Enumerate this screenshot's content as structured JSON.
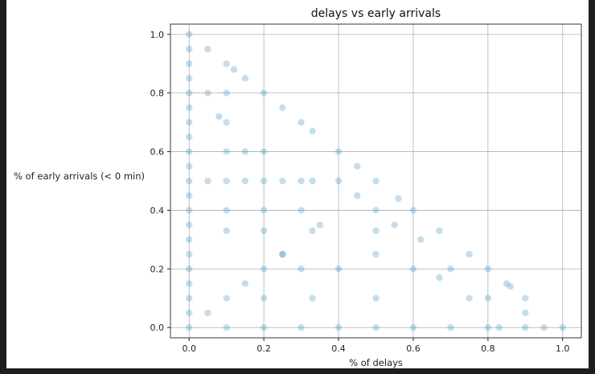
{
  "chart_data": {
    "type": "scatter",
    "title": "delays vs early arrivals",
    "xlabel": "% of delays",
    "ylabel": "% of early arrivals (< 0 min)",
    "xlim": [
      -0.05,
      1.05
    ],
    "ylim": [
      -0.035,
      1.035
    ],
    "x_ticks": [
      "0.0",
      "0.2",
      "0.4",
      "0.6",
      "0.8",
      "1.0"
    ],
    "y_ticks": [
      "0.0",
      "0.2",
      "0.4",
      "0.6",
      "0.8",
      "1.0"
    ],
    "grid": true,
    "legend": "none",
    "marker_color": "#1f77b4",
    "marker_alpha": 0.25,
    "constraint": "x + y <= 1",
    "series": [
      {
        "values_xy": [
          [
            0.0,
            1.0
          ],
          [
            0.0,
            0.95
          ],
          [
            0.0,
            0.9
          ],
          [
            0.0,
            0.85
          ],
          [
            0.0,
            0.8
          ],
          [
            0.0,
            0.75
          ],
          [
            0.0,
            0.7
          ],
          [
            0.0,
            0.65
          ],
          [
            0.0,
            0.6
          ],
          [
            0.0,
            0.55
          ],
          [
            0.0,
            0.5
          ],
          [
            0.0,
            0.45
          ],
          [
            0.0,
            0.4
          ],
          [
            0.0,
            0.35
          ],
          [
            0.0,
            0.3
          ],
          [
            0.0,
            0.25
          ],
          [
            0.0,
            0.2
          ],
          [
            0.0,
            0.15
          ],
          [
            0.0,
            0.1
          ],
          [
            0.0,
            0.05
          ],
          [
            0.0,
            0.0
          ],
          [
            0.05,
            0.95
          ],
          [
            0.1,
            0.9
          ],
          [
            0.15,
            0.85
          ],
          [
            0.2,
            0.8
          ],
          [
            0.25,
            0.75
          ],
          [
            0.3,
            0.7
          ],
          [
            0.33,
            0.67
          ],
          [
            0.4,
            0.6
          ],
          [
            0.45,
            0.55
          ],
          [
            0.5,
            0.5
          ],
          [
            0.56,
            0.44
          ],
          [
            0.6,
            0.4
          ],
          [
            0.67,
            0.33
          ],
          [
            0.75,
            0.25
          ],
          [
            0.8,
            0.2
          ],
          [
            0.86,
            0.14
          ],
          [
            0.9,
            0.1
          ],
          [
            1.0,
            0.0
          ],
          [
            0.1,
            0.0
          ],
          [
            0.2,
            0.0
          ],
          [
            0.3,
            0.0
          ],
          [
            0.4,
            0.0
          ],
          [
            0.5,
            0.0
          ],
          [
            0.6,
            0.0
          ],
          [
            0.7,
            0.0
          ],
          [
            0.8,
            0.0
          ],
          [
            0.83,
            0.0
          ],
          [
            0.9,
            0.0
          ],
          [
            0.95,
            0.0
          ],
          [
            0.05,
            0.05
          ],
          [
            0.1,
            0.1
          ],
          [
            0.15,
            0.15
          ],
          [
            0.2,
            0.2
          ],
          [
            0.25,
            0.25
          ],
          [
            0.05,
            0.5
          ],
          [
            0.1,
            0.5
          ],
          [
            0.15,
            0.5
          ],
          [
            0.2,
            0.5
          ],
          [
            0.3,
            0.5
          ],
          [
            0.4,
            0.5
          ],
          [
            0.1,
            0.4
          ],
          [
            0.2,
            0.4
          ],
          [
            0.3,
            0.4
          ],
          [
            0.1,
            0.33
          ],
          [
            0.2,
            0.33
          ],
          [
            0.33,
            0.33
          ],
          [
            0.1,
            0.7
          ],
          [
            0.15,
            0.6
          ],
          [
            0.2,
            0.6
          ],
          [
            0.1,
            0.6
          ],
          [
            0.05,
            0.8
          ],
          [
            0.1,
            0.8
          ],
          [
            0.25,
            0.5
          ],
          [
            0.33,
            0.5
          ],
          [
            0.5,
            0.25
          ],
          [
            0.5,
            0.33
          ],
          [
            0.5,
            0.4
          ],
          [
            0.5,
            0.1
          ],
          [
            0.25,
            0.25
          ],
          [
            0.33,
            0.1
          ],
          [
            0.4,
            0.2
          ],
          [
            0.3,
            0.2
          ],
          [
            0.2,
            0.1
          ],
          [
            0.6,
            0.2
          ],
          [
            0.67,
            0.17
          ],
          [
            0.75,
            0.1
          ],
          [
            0.7,
            0.2
          ],
          [
            0.8,
            0.1
          ],
          [
            0.85,
            0.15
          ],
          [
            0.9,
            0.05
          ],
          [
            0.62,
            0.3
          ],
          [
            0.55,
            0.35
          ],
          [
            0.45,
            0.45
          ],
          [
            0.35,
            0.35
          ],
          [
            0.12,
            0.88
          ],
          [
            0.08,
            0.72
          ]
        ]
      }
    ]
  }
}
